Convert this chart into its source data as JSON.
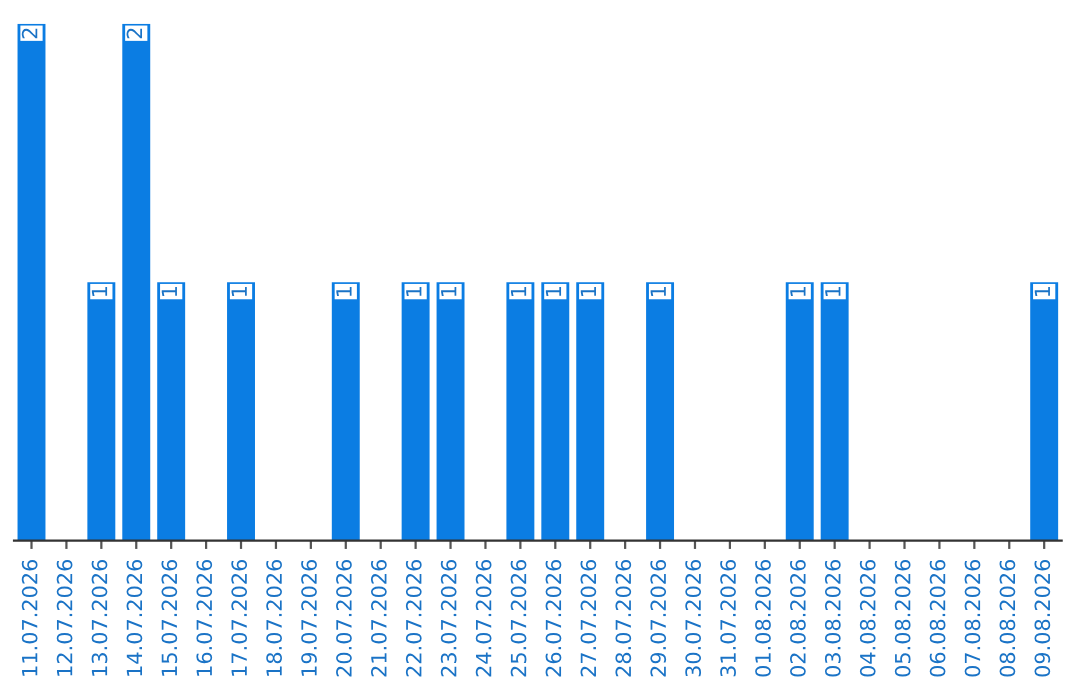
{
  "chart_data": {
    "type": "bar",
    "categories": [
      "11.07.2026",
      "12.07.2026",
      "13.07.2026",
      "14.07.2026",
      "15.07.2026",
      "16.07.2026",
      "17.07.2026",
      "18.07.2026",
      "19.07.2026",
      "20.07.2026",
      "21.07.2026",
      "22.07.2026",
      "23.07.2026",
      "24.07.2026",
      "25.07.2026",
      "26.07.2026",
      "27.07.2026",
      "28.07.2026",
      "29.07.2026",
      "30.07.2026",
      "31.07.2026",
      "01.08.2026",
      "02.08.2026",
      "03.08.2026",
      "04.08.2026",
      "05.08.2026",
      "06.08.2026",
      "07.08.2026",
      "08.08.2026",
      "09.08.2026"
    ],
    "values": [
      2,
      0,
      1,
      2,
      1,
      0,
      1,
      0,
      0,
      1,
      0,
      1,
      1,
      0,
      1,
      1,
      1,
      0,
      1,
      0,
      0,
      0,
      1,
      1,
      0,
      0,
      0,
      0,
      0,
      1
    ],
    "value_labels": [
      "2",
      null,
      "1",
      "2",
      "1",
      null,
      "1",
      null,
      null,
      "1",
      null,
      "1",
      "1",
      null,
      "1",
      "1",
      "1",
      null,
      "1",
      null,
      null,
      null,
      "1",
      "1",
      null,
      null,
      null,
      null,
      null,
      "1"
    ],
    "color": "#0b7de3",
    "grid": false,
    "legend": false
  }
}
